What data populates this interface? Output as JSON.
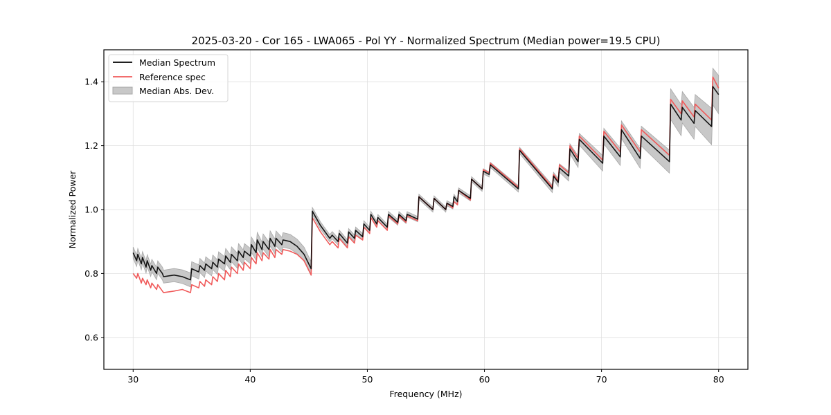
{
  "chart_data": {
    "type": "line",
    "title": "2025-03-20 - Cor 165 - LWA065 - Pol YY - Normalized Spectrum (Median power=19.5 CPU)",
    "xlabel": "Frequency (MHz)",
    "ylabel": "Normalized Power",
    "xlim": [
      27.5,
      82.5
    ],
    "ylim": [
      0.5,
      1.5
    ],
    "xticks": [
      30,
      40,
      50,
      60,
      70,
      80
    ],
    "xtick_labels": [
      "30",
      "40",
      "50",
      "60",
      "70",
      "80"
    ],
    "yticks": [
      0.6,
      0.8,
      1.0,
      1.2,
      1.4
    ],
    "ytick_labels": [
      "0.6",
      "0.8",
      "1.0",
      "1.2",
      "1.4"
    ],
    "grid": true,
    "legend": {
      "placement": "top-left",
      "entries": [
        {
          "label": "Median Spectrum",
          "kind": "line",
          "color": "#000000"
        },
        {
          "label": "Reference spec",
          "kind": "line",
          "color": "#f05a5a"
        },
        {
          "label": "Median Abs. Dev.",
          "kind": "fill",
          "color": "#c8c8c8"
        }
      ]
    },
    "colors": {
      "median": "#000000",
      "reference": "#f05a5a",
      "mad_fill": "#c8c8c8",
      "mad_edge": "#a8a8a8",
      "grid": "#e0e0e0"
    },
    "series": [
      {
        "name": "Median Spectrum",
        "x": [
          30.0,
          30.3,
          30.4,
          30.7,
          30.8,
          31.1,
          31.2,
          31.5,
          31.6,
          32.0,
          32.1,
          32.5,
          32.6,
          33.5,
          34.2,
          34.9,
          35.0,
          35.6,
          35.7,
          36.1,
          36.2,
          36.7,
          36.8,
          37.2,
          37.3,
          37.8,
          37.9,
          38.3,
          38.4,
          38.9,
          39.0,
          39.4,
          39.5,
          40.0,
          40.1,
          40.5,
          40.6,
          41.0,
          41.1,
          41.6,
          41.7,
          42.1,
          42.2,
          42.7,
          42.8,
          43.4,
          44.0,
          44.6,
          45.2,
          45.3,
          46.0,
          46.8,
          47.0,
          47.5,
          47.6,
          48.3,
          48.4,
          48.9,
          49.0,
          49.6,
          49.7,
          50.2,
          50.3,
          50.8,
          50.9,
          51.7,
          51.8,
          52.6,
          52.7,
          53.3,
          53.4,
          54.3,
          54.4,
          55.6,
          55.7,
          56.7,
          56.8,
          57.3,
          57.4,
          57.7,
          57.8,
          58.8,
          58.9,
          59.8,
          59.9,
          60.4,
          60.5,
          62.9,
          63.0,
          65.8,
          65.9,
          66.3,
          66.4,
          67.2,
          67.3,
          68.0,
          68.1,
          70.1,
          70.2,
          71.6,
          71.7,
          73.3,
          73.4,
          75.8,
          75.9,
          76.8,
          76.9,
          77.9,
          78.0,
          79.4,
          79.5,
          80.0
        ],
        "y": [
          0.865,
          0.84,
          0.86,
          0.83,
          0.85,
          0.82,
          0.84,
          0.81,
          0.825,
          0.8,
          0.82,
          0.8,
          0.79,
          0.795,
          0.79,
          0.78,
          0.815,
          0.805,
          0.825,
          0.81,
          0.83,
          0.815,
          0.835,
          0.82,
          0.845,
          0.83,
          0.855,
          0.835,
          0.86,
          0.84,
          0.87,
          0.85,
          0.87,
          0.855,
          0.89,
          0.865,
          0.905,
          0.875,
          0.9,
          0.875,
          0.91,
          0.885,
          0.91,
          0.89,
          0.905,
          0.9,
          0.885,
          0.86,
          0.815,
          0.995,
          0.95,
          0.91,
          0.92,
          0.9,
          0.925,
          0.895,
          0.93,
          0.91,
          0.935,
          0.915,
          0.955,
          0.935,
          0.985,
          0.955,
          0.975,
          0.945,
          0.985,
          0.96,
          0.985,
          0.965,
          0.985,
          0.97,
          1.04,
          1.0,
          1.035,
          1.0,
          1.02,
          1.01,
          1.04,
          1.025,
          1.06,
          1.035,
          1.095,
          1.065,
          1.12,
          1.11,
          1.14,
          1.065,
          1.185,
          1.065,
          1.105,
          1.085,
          1.13,
          1.105,
          1.19,
          1.15,
          1.22,
          1.145,
          1.23,
          1.165,
          1.25,
          1.16,
          1.23,
          1.15,
          1.33,
          1.28,
          1.32,
          1.27,
          1.31,
          1.26,
          1.385,
          1.36
        ]
      },
      {
        "name": "Reference spec",
        "x": [
          30.0,
          30.3,
          30.4,
          30.7,
          30.8,
          31.1,
          31.2,
          31.5,
          31.6,
          32.0,
          32.1,
          32.5,
          32.6,
          33.5,
          34.2,
          34.9,
          35.0,
          35.6,
          35.7,
          36.1,
          36.2,
          36.7,
          36.8,
          37.2,
          37.3,
          37.8,
          37.9,
          38.3,
          38.4,
          38.9,
          39.0,
          39.4,
          39.5,
          40.0,
          40.1,
          40.5,
          40.6,
          41.0,
          41.1,
          41.6,
          41.7,
          42.1,
          42.2,
          42.7,
          42.8,
          43.4,
          44.0,
          44.6,
          45.2,
          45.3,
          46.0,
          46.8,
          47.0,
          47.5,
          47.6,
          48.3,
          48.4,
          48.9,
          49.0,
          49.6,
          49.7,
          50.2,
          50.3,
          50.8,
          50.9,
          51.7,
          51.8,
          52.6,
          52.7,
          53.3,
          53.4,
          54.3,
          54.4,
          55.6,
          55.7,
          56.7,
          56.8,
          57.3,
          57.4,
          57.7,
          57.8,
          58.8,
          58.9,
          59.8,
          59.9,
          60.4,
          60.5,
          62.9,
          63.0,
          65.8,
          65.9,
          66.3,
          66.4,
          67.2,
          67.3,
          68.0,
          68.1,
          70.1,
          70.2,
          71.6,
          71.7,
          73.3,
          73.4,
          75.8,
          75.9,
          76.8,
          76.9,
          77.9,
          78.0,
          79.4,
          79.5,
          80.0
        ],
        "y": [
          0.8,
          0.785,
          0.8,
          0.77,
          0.785,
          0.765,
          0.78,
          0.755,
          0.77,
          0.75,
          0.765,
          0.745,
          0.74,
          0.745,
          0.75,
          0.74,
          0.765,
          0.755,
          0.775,
          0.76,
          0.78,
          0.765,
          0.79,
          0.775,
          0.8,
          0.78,
          0.81,
          0.79,
          0.82,
          0.8,
          0.83,
          0.81,
          0.835,
          0.815,
          0.85,
          0.83,
          0.865,
          0.84,
          0.865,
          0.845,
          0.875,
          0.85,
          0.875,
          0.86,
          0.875,
          0.87,
          0.86,
          0.84,
          0.795,
          0.975,
          0.93,
          0.89,
          0.9,
          0.88,
          0.91,
          0.88,
          0.915,
          0.895,
          0.92,
          0.905,
          0.945,
          0.925,
          0.975,
          0.945,
          0.965,
          0.935,
          0.98,
          0.955,
          0.98,
          0.96,
          0.98,
          0.965,
          1.04,
          1.0,
          1.035,
          1.0,
          1.02,
          1.005,
          1.025,
          1.015,
          1.06,
          1.03,
          1.095,
          1.065,
          1.125,
          1.115,
          1.145,
          1.07,
          1.19,
          1.07,
          1.11,
          1.09,
          1.14,
          1.115,
          1.2,
          1.16,
          1.23,
          1.155,
          1.245,
          1.18,
          1.265,
          1.18,
          1.25,
          1.17,
          1.345,
          1.3,
          1.34,
          1.29,
          1.33,
          1.28,
          1.415,
          1.38
        ]
      },
      {
        "name": "Median Abs. Dev.",
        "kind": "band_halfwidth",
        "x": [
          30.0,
          35.0,
          40.0,
          45.2,
          45.3,
          50.0,
          55.0,
          60.0,
          63.0,
          66.0,
          68.0,
          70.0,
          73.0,
          75.8,
          75.9,
          78.0,
          80.0
        ],
        "y": [
          0.018,
          0.022,
          0.024,
          0.022,
          0.012,
          0.01,
          0.008,
          0.008,
          0.01,
          0.012,
          0.018,
          0.024,
          0.03,
          0.036,
          0.048,
          0.05,
          0.06
        ]
      }
    ]
  }
}
